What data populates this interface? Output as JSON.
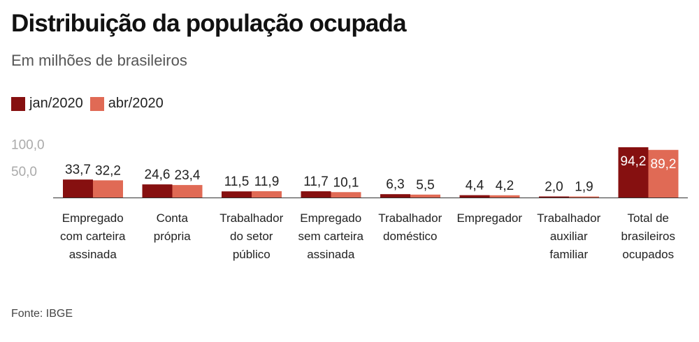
{
  "title": "Distribuição da população ocupada",
  "subtitle": "Em milhões de brasileiros",
  "source": "Fonte: IBGE",
  "colors": {
    "jan": "#861010",
    "abr": "#e06a55",
    "axis": "#333333"
  },
  "chart_data": {
    "type": "bar",
    "title": "Distribuição da população ocupada",
    "subtitle": "Em milhões de brasileiros",
    "xlabel": "",
    "ylabel": "",
    "ylim": [
      0,
      100
    ],
    "yticks": [
      {
        "value": 100,
        "label": "100,0"
      },
      {
        "value": 50,
        "label": "50,0"
      }
    ],
    "legend_position": "top-left",
    "categories": [
      [
        "Empregado",
        "com carteira",
        "assinada"
      ],
      [
        "Conta",
        "própria"
      ],
      [
        "Trabalhador",
        "do setor",
        "público"
      ],
      [
        "Empregado",
        "sem carteira",
        "assinada"
      ],
      [
        "Trabalhador",
        "doméstico"
      ],
      [
        "Empregador"
      ],
      [
        "Trabalhador",
        "auxiliar",
        "familiar"
      ],
      [
        "Total de",
        "brasileiros",
        "ocupados"
      ]
    ],
    "series": [
      {
        "name": "jan/2020",
        "values": [
          33.7,
          24.6,
          11.5,
          11.7,
          6.3,
          4.4,
          2.0,
          94.2
        ],
        "labels": [
          "33,7",
          "24,6",
          "11,5",
          "11,7",
          "6,3",
          "4,4",
          "2,0",
          "94,2"
        ]
      },
      {
        "name": "abr/2020",
        "values": [
          32.2,
          23.4,
          11.9,
          10.1,
          5.5,
          4.2,
          1.9,
          89.2
        ],
        "labels": [
          "32,2",
          "23,4",
          "11,9",
          "10,1",
          "5,5",
          "4,2",
          "1,9",
          "89,2"
        ]
      }
    ]
  }
}
